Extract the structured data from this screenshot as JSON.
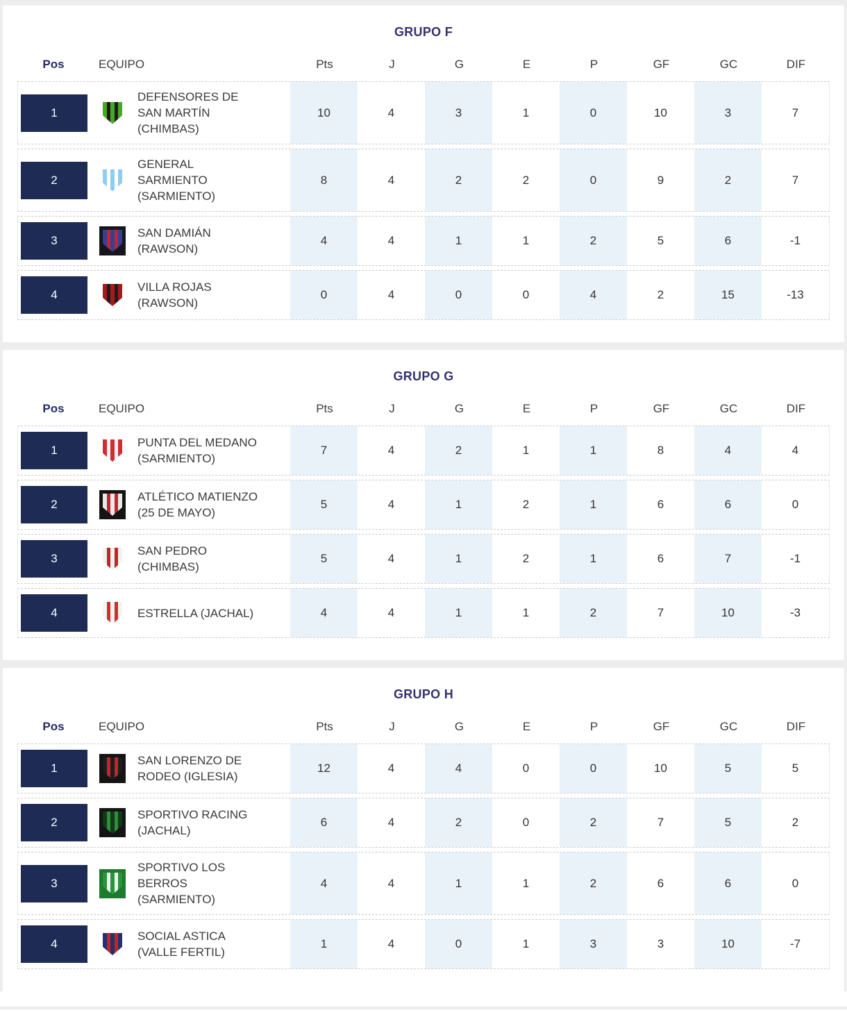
{
  "columns": {
    "pos": "Pos",
    "equipo": "EQUIPO",
    "stats": [
      "Pts",
      "J",
      "G",
      "E",
      "P",
      "GF",
      "GC",
      "DIF"
    ]
  },
  "colors": {
    "position_badge": "#1d2b55",
    "group_title": "#34316f",
    "pos_header": "#232a66",
    "column_band": "#e9f2f9",
    "header_text": "#3c3c3c",
    "cell_text": "#333333",
    "page_background": "#ededed",
    "card_background": "#ffffff"
  },
  "groups": [
    {
      "title": "GRUPO F",
      "rows": [
        {
          "pos": "1",
          "team": "DEFENSORES DE\nSAN MARTÍN\n(CHIMBAS)",
          "stats": [
            "10",
            "4",
            "3",
            "1",
            "0",
            "10",
            "3",
            "7"
          ],
          "logo": {
            "name": "defensores-de-san-martin-crest",
            "bg": "",
            "c1": "#46a926",
            "c2": "#1c1c1c"
          }
        },
        {
          "pos": "2",
          "team": "GENERAL\nSARMIENTO\n(SARMIENTO)",
          "stats": [
            "8",
            "4",
            "2",
            "2",
            "0",
            "9",
            "2",
            "7"
          ],
          "logo": {
            "name": "general-sarmiento-crest",
            "bg": "",
            "c1": "#8ecdf2",
            "c2": "#ffffff"
          }
        },
        {
          "pos": "3",
          "team": "SAN DAMIÁN\n(RAWSON)",
          "stats": [
            "4",
            "4",
            "1",
            "1",
            "2",
            "5",
            "6",
            "-1"
          ],
          "logo": {
            "name": "san-damian-crest",
            "bg": "#16161e",
            "c1": "#33418f",
            "c2": "#c42430"
          }
        },
        {
          "pos": "4",
          "team": "VILLA ROJAS\n(RAWSON)",
          "stats": [
            "0",
            "4",
            "0",
            "0",
            "4",
            "2",
            "15",
            "-13"
          ],
          "logo": {
            "name": "villa-rojas-crest",
            "bg": "",
            "c1": "#a51a1a",
            "c2": "#1c1c1c"
          }
        }
      ]
    },
    {
      "title": "GRUPO G",
      "rows": [
        {
          "pos": "1",
          "team": "PUNTA DEL MEDANO\n(SARMIENTO)",
          "stats": [
            "7",
            "4",
            "2",
            "1",
            "1",
            "8",
            "4",
            "4"
          ],
          "logo": {
            "name": "punta-del-medano-crest",
            "bg": "",
            "c1": "#cf2e2e",
            "c2": "#f5f5f5"
          }
        },
        {
          "pos": "2",
          "team": "ATLÉTICO MATIENZO\n(25 DE MAYO)",
          "stats": [
            "5",
            "4",
            "1",
            "2",
            "1",
            "6",
            "6",
            "0"
          ],
          "logo": {
            "name": "atletico-matienzo-crest",
            "bg": "#141414",
            "c1": "#e9e9e9",
            "c2": "#c42430"
          }
        },
        {
          "pos": "3",
          "team": "SAN PEDRO\n(CHIMBAS)",
          "stats": [
            "5",
            "4",
            "1",
            "2",
            "1",
            "6",
            "7",
            "-1"
          ],
          "logo": {
            "name": "san-pedro-crest",
            "bg": "",
            "c1": "#f2f2f2",
            "c2": "#bf2626"
          }
        },
        {
          "pos": "4",
          "team": "ESTRELLA (JACHAL)",
          "stats": [
            "4",
            "4",
            "1",
            "1",
            "2",
            "7",
            "10",
            "-3"
          ],
          "logo": {
            "name": "estrella-crest",
            "bg": "",
            "c1": "#f4f4f4",
            "c2": "#cf2e2e"
          }
        }
      ]
    },
    {
      "title": "GRUPO H",
      "rows": [
        {
          "pos": "1",
          "team": "SAN LORENZO DE\nRODEO (IGLESIA)",
          "stats": [
            "12",
            "4",
            "4",
            "0",
            "0",
            "10",
            "5",
            "5"
          ],
          "logo": {
            "name": "san-lorenzo-de-rodeo-crest",
            "bg": "#141414",
            "c1": "#1d1d1d",
            "c2": "#c42430"
          }
        },
        {
          "pos": "2",
          "team": "SPORTIVO RACING\n(JACHAL)",
          "stats": [
            "6",
            "4",
            "2",
            "0",
            "2",
            "7",
            "5",
            "2"
          ],
          "logo": {
            "name": "sportivo-racing-crest",
            "bg": "#141414",
            "c1": "#14381a",
            "c2": "#2f8f3a"
          }
        },
        {
          "pos": "3",
          "team": "SPORTIVO LOS\nBERROS\n(SARMIENTO)",
          "stats": [
            "4",
            "4",
            "1",
            "1",
            "2",
            "6",
            "6",
            "0"
          ],
          "logo": {
            "name": "sportivo-los-berros-crest",
            "bg": "#1d7a2e",
            "c1": "#27963a",
            "c2": "#eafaea"
          }
        },
        {
          "pos": "4",
          "team": "SOCIAL ASTICA\n(VALLE FERTIL)",
          "stats": [
            "1",
            "4",
            "0",
            "1",
            "3",
            "3",
            "10",
            "-7"
          ],
          "logo": {
            "name": "social-astica-crest",
            "bg": "",
            "c1": "#27306b",
            "c2": "#bf2626"
          }
        }
      ]
    }
  ]
}
